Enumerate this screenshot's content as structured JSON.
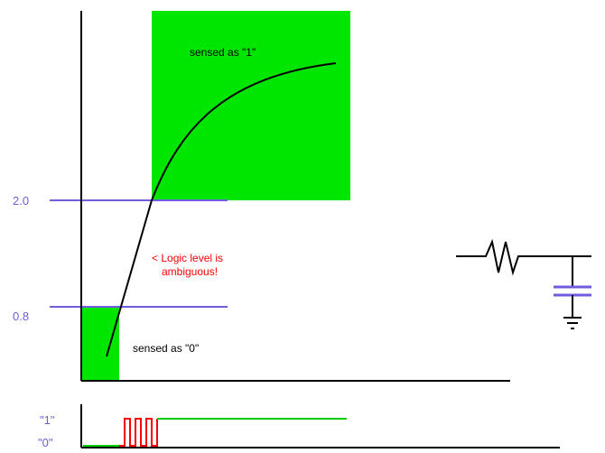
{
  "colors": {
    "background": "#ffffff",
    "axis": "#000000",
    "threshold": "#6f5ce0",
    "region": "#00e600",
    "curve": "#000000",
    "warning": "#ff0000",
    "digital_high": "#00cc00",
    "digital_glitch": "#ff0000"
  },
  "thresholds": {
    "high_label": "2.0",
    "low_label": "0.8"
  },
  "regions": {
    "high_text": "sensed as \"1\"",
    "low_text": "sensed as \"0\""
  },
  "ambiguous": {
    "line1": "< Logic level is",
    "line2": "ambiguous!"
  },
  "digital": {
    "one_label": "\"1\"",
    "zero_label": "\"0\""
  },
  "circuit": {
    "parts": [
      "resistor",
      "capacitor",
      "ground"
    ]
  }
}
